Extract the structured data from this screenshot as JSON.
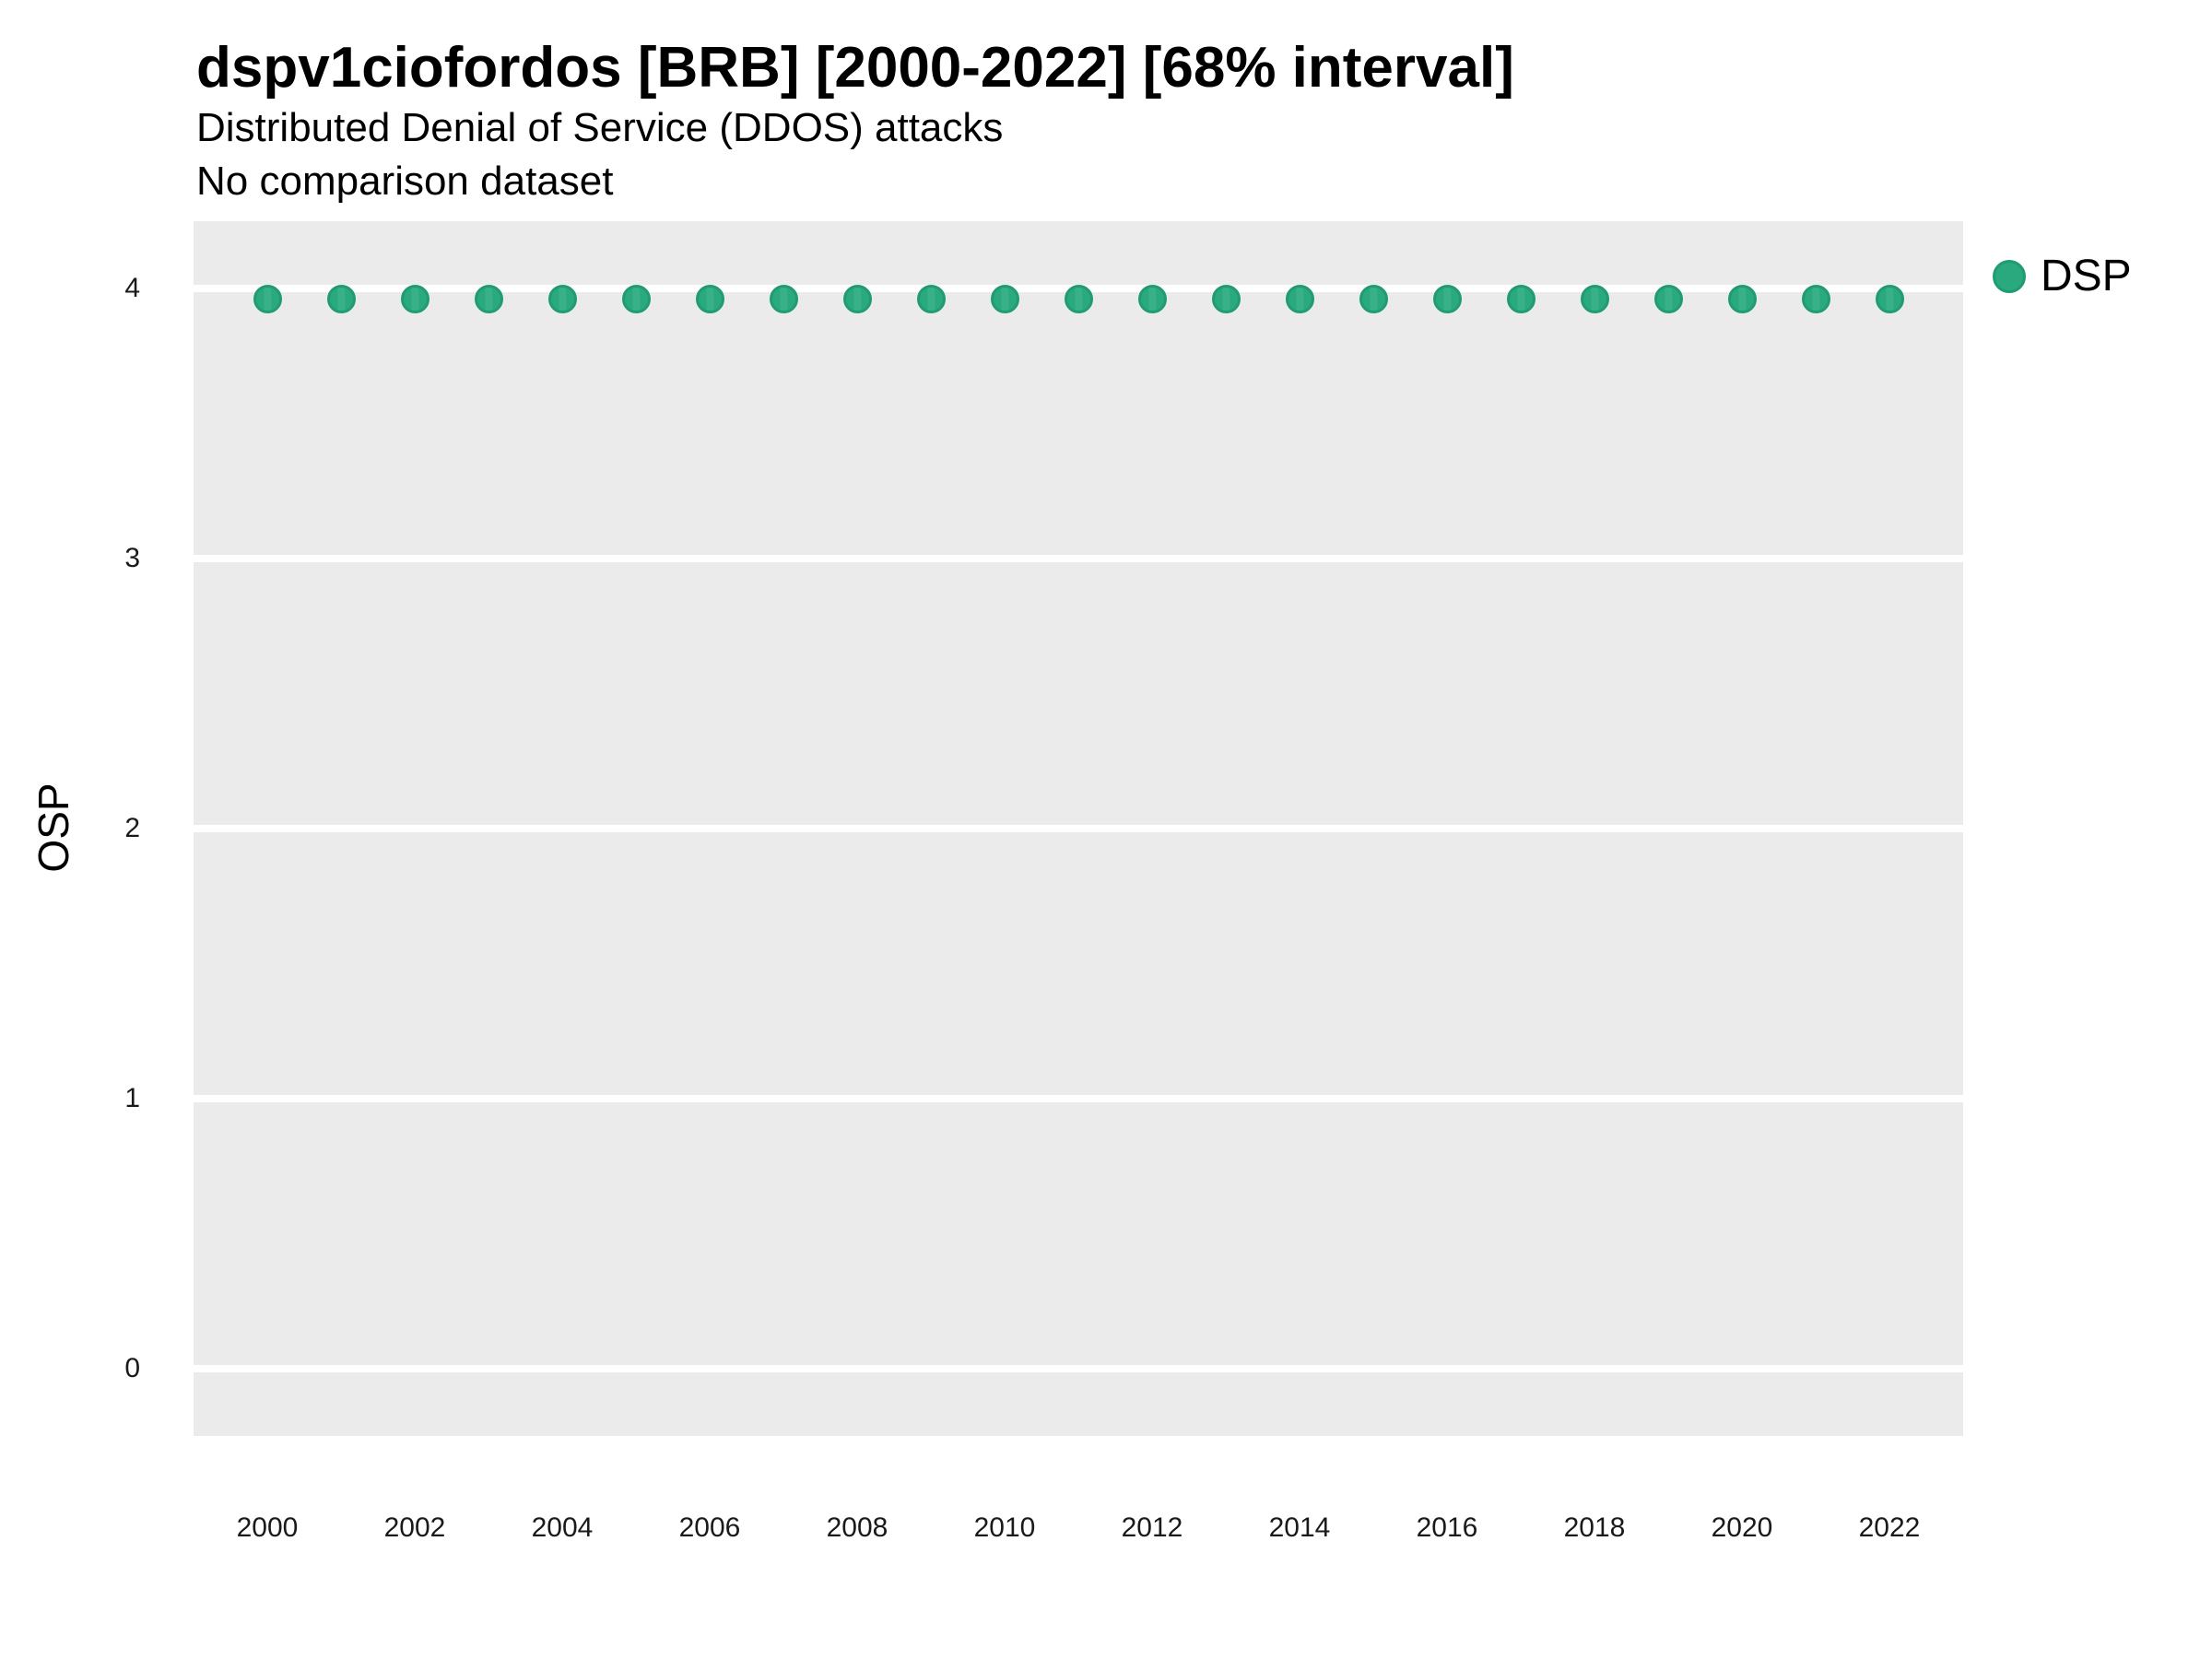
{
  "header": {
    "title": "dspv1ciofordos [BRB] [2000-2022] [68% interval]",
    "subtitle": "Distributed Denial of Service (DDOS) attacks",
    "comparison_note": "No comparison dataset"
  },
  "legend": {
    "position": "right",
    "items": [
      {
        "label": "DSP",
        "color": "#2aa87e",
        "marker": "circle"
      }
    ]
  },
  "colors": {
    "point_fill": "#2aa87e",
    "point_stroke": "#1f9c73",
    "plot_background": "#ebebeb",
    "gridline": "#ffffff",
    "text": "#000000"
  },
  "chart_data": {
    "type": "scatter",
    "title": "dspv1ciofordos [BRB] [2000-2022] [68% interval]",
    "subtitle": "Distributed Denial of Service (DDOS) attacks",
    "annotation": "No comparison dataset",
    "interval_pct": 68,
    "xlabel": "",
    "ylabel": "OSP",
    "xlim": [
      1999,
      2023
    ],
    "ylim": [
      -0.25,
      4.25
    ],
    "x_ticks": [
      2000,
      2002,
      2004,
      2006,
      2008,
      2010,
      2012,
      2014,
      2016,
      2018,
      2020,
      2022
    ],
    "y_ticks": [
      0,
      1,
      2,
      3,
      4
    ],
    "grid": "horizontal-major-only",
    "legend_position": "right",
    "series": [
      {
        "name": "DSP",
        "color": "#2aa87e",
        "x": [
          2000,
          2001,
          2002,
          2003,
          2004,
          2005,
          2006,
          2007,
          2008,
          2009,
          2010,
          2011,
          2012,
          2013,
          2014,
          2015,
          2016,
          2017,
          2018,
          2019,
          2020,
          2021,
          2022
        ],
        "y": [
          3.96,
          3.96,
          3.96,
          3.96,
          3.96,
          3.96,
          3.96,
          3.96,
          3.96,
          3.96,
          3.96,
          3.96,
          3.96,
          3.96,
          3.96,
          3.96,
          3.96,
          3.96,
          3.96,
          3.96,
          3.96,
          3.96,
          3.96
        ]
      }
    ]
  }
}
